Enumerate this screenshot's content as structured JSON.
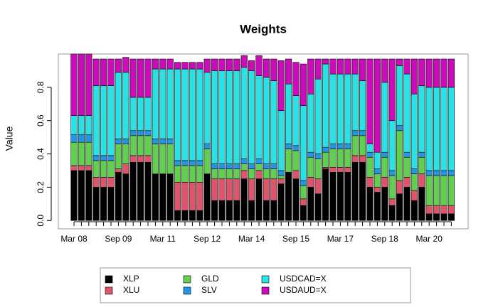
{
  "chart_data": {
    "type": "stacked_bar",
    "title": "Weights",
    "y_label": "Value",
    "categories": [
      "Mar 08",
      null,
      null,
      null,
      null,
      null,
      "Sep 09",
      null,
      null,
      null,
      null,
      null,
      "Mar 11",
      null,
      null,
      null,
      null,
      null,
      "Sep 12",
      null,
      null,
      null,
      null,
      null,
      "Mar 14",
      null,
      null,
      null,
      null,
      null,
      "Sep 15",
      null,
      null,
      null,
      null,
      null,
      "Mar 17",
      null,
      null,
      null,
      null,
      null,
      "Sep 18",
      null,
      null,
      null,
      null,
      null,
      "Mar 20",
      null,
      null,
      null
    ],
    "series": [
      {
        "name": "XLP",
        "color": "#000000",
        "values": [
          0.3,
          0.3,
          0.3,
          0.2,
          0.2,
          0.2,
          0.29,
          0.28,
          0.35,
          0.35,
          0.35,
          0.28,
          0.28,
          0.28,
          0.06,
          0.06,
          0.06,
          0.06,
          0.28,
          0.12,
          0.12,
          0.12,
          0.12,
          0.25,
          0.12,
          0.25,
          0.12,
          0.12,
          0.22,
          0.29,
          0.25,
          0.09,
          0.2,
          0.16,
          0.31,
          0.29,
          0.29,
          0.29,
          0.35,
          0.35,
          0.2,
          0.17,
          0.2,
          0.09,
          0.16,
          0.2,
          0.12,
          0.2,
          0.04,
          0.04,
          0.04,
          0.04
        ]
      },
      {
        "name": "XLU",
        "color": "#df536b",
        "values": [
          0.03,
          0.03,
          0.03,
          0.06,
          0.06,
          0.06,
          0.02,
          0.06,
          0.04,
          0.04,
          0.04,
          0,
          0,
          0,
          0.17,
          0.17,
          0.17,
          0.17,
          0,
          0.13,
          0.13,
          0.13,
          0.13,
          0.05,
          0.13,
          0.05,
          0.13,
          0.13,
          0.03,
          0,
          0.05,
          0.04,
          0.06,
          0.09,
          0.01,
          0.03,
          0.03,
          0.03,
          0.04,
          0.04,
          0.06,
          0.03,
          0.06,
          0.04,
          0.08,
          0.06,
          0.06,
          0.08,
          0.05,
          0.05,
          0.05,
          0.05
        ]
      },
      {
        "name": "GLD",
        "color": "#61d04f",
        "values": [
          0.14,
          0.14,
          0.14,
          0.1,
          0.1,
          0.1,
          0.15,
          0.12,
          0.12,
          0.12,
          0.12,
          0.18,
          0.18,
          0.18,
          0.1,
          0.1,
          0.1,
          0.1,
          0.15,
          0.06,
          0.06,
          0.06,
          0.06,
          0.04,
          0.06,
          0.04,
          0.06,
          0.06,
          0.02,
          0.14,
          0.12,
          0.08,
          0.12,
          0.12,
          0.09,
          0.11,
          0.11,
          0.11,
          0.12,
          0.12,
          0.12,
          0.08,
          0.12,
          0.14,
          0.3,
          0.12,
          0.1,
          0.1,
          0.18,
          0.18,
          0.18,
          0.18
        ]
      },
      {
        "name": "SLV",
        "color": "#2297e6",
        "values": [
          0.045,
          0.045,
          0.045,
          0.03,
          0.03,
          0.03,
          0.03,
          0.03,
          0.03,
          0.03,
          0.03,
          0.03,
          0.03,
          0.03,
          0.03,
          0.03,
          0.03,
          0.03,
          0.03,
          0.03,
          0.03,
          0.03,
          0.03,
          0.03,
          0.03,
          0.03,
          0.03,
          0.03,
          0.03,
          0.03,
          0.03,
          0.03,
          0.03,
          0.03,
          0.03,
          0.03,
          0.03,
          0.03,
          0.03,
          0.03,
          0.03,
          0.03,
          0.03,
          0.03,
          0.03,
          0.03,
          0.03,
          0.03,
          0.03,
          0.03,
          0.03,
          0.03
        ]
      },
      {
        "name": "USDCAD=X",
        "color": "#28e2e5",
        "values": [
          0.115,
          0.115,
          0.115,
          0.42,
          0.42,
          0.42,
          0.4,
          0.4,
          0.2,
          0.2,
          0.2,
          0.42,
          0.42,
          0.42,
          0.55,
          0.55,
          0.55,
          0.55,
          0.43,
          0.56,
          0.56,
          0.56,
          0.56,
          0.55,
          0.56,
          0.5,
          0.52,
          0.5,
          0.36,
          0.36,
          0.3,
          0.45,
          0.35,
          0.45,
          0.5,
          0.42,
          0.42,
          0.42,
          0.34,
          0.3,
          0.05,
          0.1,
          0.42,
          0.3,
          0.36,
          0.47,
          0.45,
          0.4,
          0.5,
          0.5,
          0.5,
          0.5
        ]
      },
      {
        "name": "USDAUD=X",
        "color": "#cd0bbc",
        "values": [
          0.37,
          0.37,
          0.37,
          0.16,
          0.16,
          0.16,
          0.08,
          0.09,
          0.23,
          0.23,
          0.23,
          0.06,
          0.06,
          0.06,
          0.04,
          0.04,
          0.04,
          0.04,
          0.08,
          0.07,
          0.07,
          0.07,
          0.07,
          0.07,
          0.06,
          0.12,
          0.11,
          0.13,
          0.3,
          0.15,
          0.2,
          0.25,
          0.21,
          0.12,
          0.03,
          0.09,
          0.09,
          0.09,
          0.09,
          0.13,
          0.51,
          0.56,
          0.14,
          0.37,
          0.04,
          0.09,
          0.21,
          0.16,
          0.17,
          0.17,
          0.17,
          0.17
        ]
      }
    ],
    "ylim": [
      -0.05,
      1.0
    ],
    "yticks": [
      {
        "value": 0,
        "label": "0.0"
      },
      0.2,
      0.4,
      0.6,
      0.8
    ]
  }
}
